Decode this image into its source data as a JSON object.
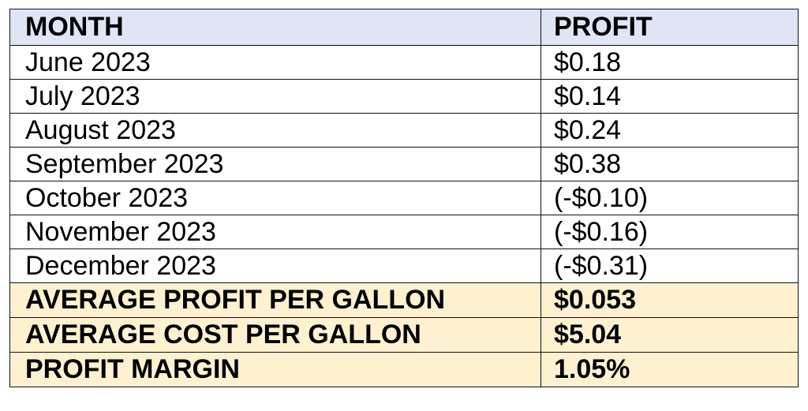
{
  "colors": {
    "header_bg": "#dfe5f4",
    "summary_bg": "#fdf1cf",
    "border": "#111111"
  },
  "table": {
    "headers": [
      "MONTH",
      "PROFIT"
    ],
    "rows": [
      {
        "month": "June 2023",
        "profit": "$0.18"
      },
      {
        "month": "July 2023",
        "profit": "$0.14"
      },
      {
        "month": "August 2023",
        "profit": "$0.24"
      },
      {
        "month": "September 2023",
        "profit": "$0.38"
      },
      {
        "month": "October 2023",
        "profit": "(-$0.10)"
      },
      {
        "month": "November 2023",
        "profit": "(-$0.16)"
      },
      {
        "month": "December 2023",
        "profit": "(-$0.31)"
      }
    ],
    "summary": [
      {
        "label": "AVERAGE PROFIT PER GALLON",
        "value": "$0.053"
      },
      {
        "label": "AVERAGE COST PER GALLON",
        "value": "$5.04"
      },
      {
        "label": "PROFIT MARGIN",
        "value": "1.05%"
      }
    ]
  }
}
